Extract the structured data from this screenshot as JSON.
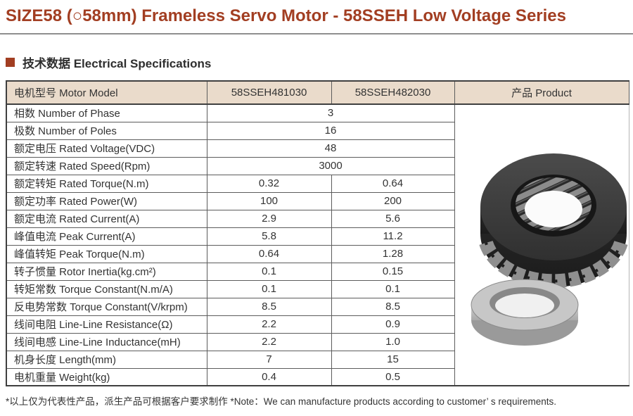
{
  "page": {
    "title": "SIZE58 (○58mm) Frameless Servo Motor - 58SSEH Low Voltage Series",
    "section_title": "技术数据 Electrical Specifications",
    "footnote": "*以上仅为代表性产品，派生产品可根据客户要求制作  *Note：We can manufacture products according to customer’ s requirements."
  },
  "colors": {
    "accent": "#A23E22",
    "table_header_bg": "#EADBCB",
    "border_dark": "#3F3F3F",
    "border_inner": "#5C5C5C",
    "text": "#333333"
  },
  "table": {
    "headers": [
      "电机型号 Motor Model",
      "58SSEH481030",
      "58SSEH482030",
      "产品 Product"
    ],
    "rows": [
      {
        "label": "相数 Number of Phase",
        "values": [
          "3"
        ]
      },
      {
        "label": "极数 Number of Poles",
        "values": [
          "16"
        ]
      },
      {
        "label": "额定电压 Rated Voltage(VDC)",
        "values": [
          "48"
        ]
      },
      {
        "label": "额定转速 Rated Speed(Rpm)",
        "values": [
          "3000"
        ]
      },
      {
        "label": "额定转矩 Rated Torque(N.m)",
        "values": [
          "0.32",
          "0.64"
        ]
      },
      {
        "label": "额定功率 Rated Power(W)",
        "values": [
          "100",
          "200"
        ]
      },
      {
        "label": "额定电流 Rated Current(A)",
        "values": [
          "2.9",
          "5.6"
        ]
      },
      {
        "label": "峰值电流 Peak Current(A)",
        "values": [
          "5.8",
          "11.2"
        ]
      },
      {
        "label": "峰值转矩 Peak Torque(N.m)",
        "values": [
          "0.64",
          "1.28"
        ]
      },
      {
        "label": "转子惯量 Rotor Inertia(kg.cm²)",
        "values": [
          "0.1",
          "0.15"
        ]
      },
      {
        "label": "转矩常数 Torque Constant(N.m/A)",
        "values": [
          "0.1",
          "0.1"
        ]
      },
      {
        "label": "反电势常数 Torque Constant(V/krpm)",
        "values": [
          "8.5",
          "8.5"
        ]
      },
      {
        "label": "线间电阻 Line-Line Resistance(Ω)",
        "values": [
          "2.2",
          "0.9"
        ]
      },
      {
        "label": "线间电感 Line-Line Inductance(mH)",
        "values": [
          "2.2",
          "1.0"
        ]
      },
      {
        "label": "机身长度 Length(mm)",
        "values": [
          "7",
          "15"
        ]
      },
      {
        "label": "电机重量 Weight(kg)",
        "values": [
          "0.4",
          "0.5"
        ]
      }
    ]
  },
  "product_image": {
    "description": "frameless servo motor stator ring (dark) and rotor ring (silver)"
  }
}
